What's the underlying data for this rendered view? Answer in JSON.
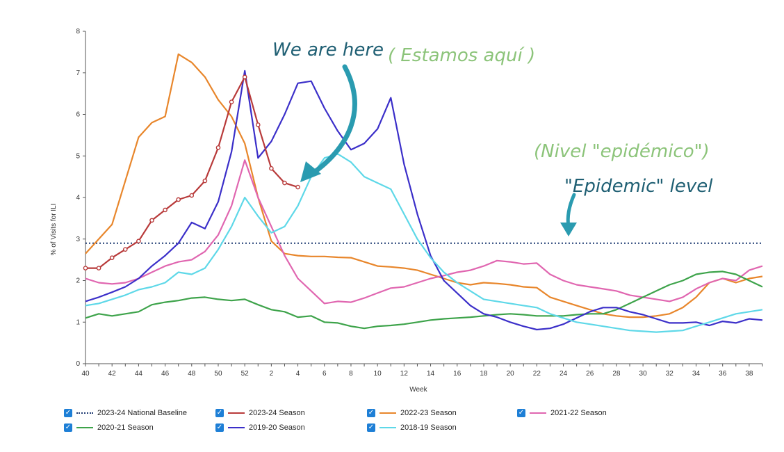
{
  "chart_data": {
    "type": "line",
    "ylabel": "% of Visits for ILI",
    "xlabel": "Week",
    "ylim": [
      0,
      8
    ],
    "y_ticks": [
      "0",
      "1",
      "2",
      "3",
      "4",
      "5",
      "6",
      "7",
      "8"
    ],
    "x_ticks": [
      "40",
      "42",
      "44",
      "46",
      "48",
      "50",
      "52",
      "2",
      "4",
      "6",
      "8",
      "10",
      "12",
      "14",
      "16",
      "18",
      "20",
      "22",
      "24",
      "26",
      "28",
      "30",
      "32",
      "34",
      "36",
      "38"
    ],
    "weeks": [
      "40",
      "41",
      "42",
      "43",
      "44",
      "45",
      "46",
      "47",
      "48",
      "49",
      "50",
      "51",
      "52",
      "1",
      "2",
      "3",
      "4",
      "5",
      "6",
      "7",
      "8",
      "9",
      "10",
      "11",
      "12",
      "13",
      "14",
      "15",
      "16",
      "17",
      "18",
      "19",
      "20",
      "21",
      "22",
      "23",
      "24",
      "25",
      "26",
      "27",
      "28",
      "29",
      "30",
      "31",
      "32",
      "33",
      "34",
      "35",
      "36",
      "37",
      "38",
      "39"
    ],
    "baseline": {
      "name": "2023-24 National Baseline",
      "value": 2.9,
      "color": "#1f3b73"
    },
    "series": [
      {
        "name": "2023-24 Season",
        "color": "#b83a3a",
        "markers": true,
        "values": [
          2.3,
          2.3,
          2.55,
          2.75,
          2.95,
          3.45,
          3.7,
          3.95,
          4.05,
          4.4,
          5.2,
          6.3,
          6.9,
          5.75,
          4.7,
          4.35,
          4.25
        ]
      },
      {
        "name": "2022-23 Season",
        "color": "#e8862b",
        "values": [
          2.65,
          3.0,
          3.35,
          4.4,
          5.45,
          5.8,
          5.95,
          7.45,
          7.25,
          6.9,
          6.35,
          5.95,
          5.3,
          4.0,
          2.95,
          2.65,
          2.6,
          2.58,
          2.58,
          2.56,
          2.55,
          2.45,
          2.35,
          2.33,
          2.3,
          2.25,
          2.15,
          2.05,
          1.95,
          1.9,
          1.95,
          1.93,
          1.9,
          1.85,
          1.83,
          1.6,
          1.5,
          1.4,
          1.3,
          1.2,
          1.15,
          1.12,
          1.12,
          1.15,
          1.2,
          1.35,
          1.6,
          1.95,
          2.05,
          1.95,
          2.05,
          2.1
        ]
      },
      {
        "name": "2021-22 Season",
        "color": "#e066b0",
        "values": [
          2.05,
          1.95,
          1.92,
          1.95,
          2.05,
          2.2,
          2.35,
          2.45,
          2.5,
          2.7,
          3.1,
          3.8,
          4.9,
          4.0,
          3.3,
          2.6,
          2.05,
          1.75,
          1.45,
          1.5,
          1.48,
          1.58,
          1.7,
          1.82,
          1.85,
          1.95,
          2.05,
          2.12,
          2.2,
          2.25,
          2.35,
          2.48,
          2.45,
          2.4,
          2.42,
          2.15,
          2.0,
          1.9,
          1.85,
          1.8,
          1.75,
          1.65,
          1.6,
          1.55,
          1.5,
          1.6,
          1.8,
          1.95,
          2.05,
          2.0,
          2.25,
          2.35
        ]
      },
      {
        "name": "2020-21 Season",
        "color": "#3da34a",
        "values": [
          1.1,
          1.2,
          1.15,
          1.2,
          1.25,
          1.42,
          1.48,
          1.52,
          1.58,
          1.6,
          1.55,
          1.52,
          1.55,
          1.42,
          1.3,
          1.25,
          1.12,
          1.15,
          1.0,
          0.98,
          0.9,
          0.85,
          0.9,
          0.92,
          0.95,
          1.0,
          1.05,
          1.08,
          1.1,
          1.12,
          1.15,
          1.18,
          1.2,
          1.18,
          1.15,
          1.15,
          1.15,
          1.18,
          1.2,
          1.2,
          1.3,
          1.45,
          1.6,
          1.75,
          1.9,
          2.0,
          2.15,
          2.2,
          2.22,
          2.15,
          2.0,
          1.85
        ]
      },
      {
        "name": "2019-20 Season",
        "color": "#3b2fc9",
        "values": [
          1.5,
          1.6,
          1.72,
          1.85,
          2.05,
          2.35,
          2.6,
          2.9,
          3.4,
          3.25,
          3.9,
          5.1,
          7.05,
          4.95,
          5.35,
          6.0,
          6.75,
          6.8,
          6.15,
          5.6,
          5.15,
          5.3,
          5.65,
          6.4,
          4.8,
          3.6,
          2.6,
          2.0,
          1.7,
          1.4,
          1.2,
          1.12,
          1.0,
          0.9,
          0.82,
          0.85,
          0.95,
          1.1,
          1.25,
          1.35,
          1.35,
          1.25,
          1.18,
          1.08,
          0.98,
          0.98,
          1.0,
          0.92,
          1.02,
          0.98,
          1.08,
          1.05
        ]
      },
      {
        "name": "2018-19 Season",
        "color": "#5ed8e8",
        "values": [
          1.4,
          1.45,
          1.55,
          1.65,
          1.78,
          1.85,
          1.95,
          2.2,
          2.15,
          2.3,
          2.75,
          3.3,
          4.0,
          3.55,
          3.15,
          3.3,
          3.8,
          4.5,
          4.95,
          5.05,
          4.85,
          4.5,
          4.35,
          4.2,
          3.6,
          3.0,
          2.55,
          2.2,
          1.95,
          1.75,
          1.55,
          1.5,
          1.45,
          1.4,
          1.35,
          1.2,
          1.1,
          1.0,
          0.95,
          0.9,
          0.85,
          0.8,
          0.78,
          0.76,
          0.78,
          0.8,
          0.9,
          1.0,
          1.1,
          1.2,
          1.25,
          1.3
        ]
      }
    ],
    "legend": [
      {
        "label": "2023-24 National Baseline",
        "color": "#1f3b73",
        "dotted": true
      },
      {
        "label": "2023-24 Season",
        "color": "#b83a3a"
      },
      {
        "label": "2022-23 Season",
        "color": "#e8862b"
      },
      {
        "label": "2021-22 Season",
        "color": "#e066b0"
      },
      {
        "label": "2020-21 Season",
        "color": "#3da34a"
      },
      {
        "label": "2019-20 Season",
        "color": "#3b2fc9"
      },
      {
        "label": "2018-19 Season",
        "color": "#5ed8e8"
      }
    ],
    "annotations": {
      "we_are_here": "We are here",
      "estamos_aqui": "( Estamos aquí )",
      "nivel_epidemico": "(Nivel \"epidémico\")",
      "epidemic_level": "\"Epidemic\" level"
    }
  }
}
